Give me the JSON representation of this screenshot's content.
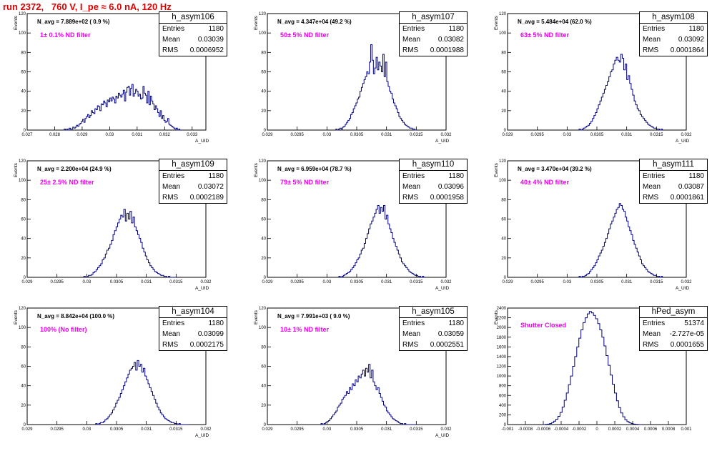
{
  "title": "run 2372,   760 V, I_pe ≈ 6.0 nA, 120 Hz",
  "stats_labels": {
    "entries": "Entries",
    "mean": "Mean",
    "rms": "RMS"
  },
  "colors": {
    "line": "#000080",
    "title": "#dd0000",
    "filter_text": "#ee00ee",
    "frame": "#000000"
  },
  "chart_data": [
    {
      "type": "histogram",
      "name": "h_asym106",
      "entries": "1180",
      "mean": "0.03039",
      "rms": "0.0006952",
      "n_avg_label": "N_avg = 7.889e+02 ( 0.9 %)",
      "filter_label": "1± 0.1% ND filter",
      "ylabel": "Events",
      "xlabel": "A_UID",
      "xlim": [
        0.027,
        0.0335
      ],
      "ylim": [
        0,
        120
      ],
      "xticks": [
        "0.027",
        "0.028",
        "0.029",
        "0.03",
        "0.031",
        "0.032",
        "0.033"
      ],
      "yticks": [
        "0",
        "20",
        "40",
        "60",
        "80",
        "100",
        "120"
      ],
      "x_tick_values": [
        0.027,
        0.028,
        0.029,
        0.03,
        0.031,
        0.032,
        0.033
      ],
      "y_tick_values": [
        0,
        20,
        40,
        60,
        80,
        100,
        120
      ],
      "bin_edges": [
        0.0283,
        0.0326
      ],
      "values": [
        0,
        1,
        0,
        1,
        0,
        2,
        1,
        1,
        3,
        2,
        3,
        5,
        4,
        6,
        7,
        9,
        11,
        8,
        12,
        14,
        16,
        13,
        15,
        20,
        18,
        17,
        22,
        21,
        25,
        24,
        20,
        27,
        26,
        30,
        28,
        24,
        31,
        29,
        33,
        30,
        34,
        32,
        28,
        35,
        33,
        38,
        36,
        34,
        37,
        41,
        30,
        39,
        44,
        45,
        36,
        43,
        47,
        35,
        38,
        42,
        40,
        35,
        37,
        32,
        33,
        45,
        38,
        36,
        28,
        40,
        26,
        35,
        30,
        27,
        21,
        25,
        22,
        18,
        14,
        20,
        12,
        15,
        10,
        8,
        9,
        12,
        6,
        5,
        4,
        3,
        2,
        1,
        2,
        0,
        1,
        0
      ]
    },
    {
      "type": "histogram",
      "name": "h_asym107",
      "entries": "1180",
      "mean": "0.03082",
      "rms": "0.0001988",
      "n_avg_label": "N_avg = 4.347e+04 (49.2 %)",
      "filter_label": "50± 5% ND filter",
      "ylabel": "Events",
      "xlabel": "A_UID",
      "xlim": [
        0.029,
        0.032
      ],
      "ylim": [
        0,
        120
      ],
      "xticks": [
        "0.029",
        "0.0295",
        "0.03",
        "0.0305",
        "0.031",
        "0.0315",
        "0.032"
      ],
      "yticks": [
        "0",
        "20",
        "40",
        "60",
        "80",
        "100",
        "120"
      ],
      "x_tick_values": [
        0.029,
        0.0295,
        0.03,
        0.0305,
        0.031,
        0.0315,
        0.032
      ],
      "y_tick_values": [
        0,
        20,
        40,
        60,
        80,
        100,
        120
      ],
      "bin_edges": [
        0.03015,
        0.0315
      ],
      "values": [
        1,
        0,
        1,
        2,
        1,
        3,
        4,
        6,
        8,
        10,
        12,
        16,
        18,
        22,
        25,
        28,
        32,
        34,
        40,
        44,
        48,
        52,
        55,
        60,
        58,
        70,
        88,
        72,
        58,
        64,
        75,
        62,
        70,
        66,
        60,
        78,
        55,
        70,
        50,
        45,
        40,
        38,
        32,
        28,
        25,
        22,
        18,
        14,
        12,
        10,
        8,
        6,
        5,
        4,
        3,
        2,
        2,
        1,
        1,
        0
      ]
    },
    {
      "type": "histogram",
      "name": "h_asym108",
      "entries": "1180",
      "mean": "0.03092",
      "rms": "0.0001864",
      "n_avg_label": "N_avg = 5.484e+04 (62.0 %)",
      "filter_label": "63± 5% ND filter",
      "ylabel": "Events",
      "xlabel": "A_UID",
      "xlim": [
        0.029,
        0.032
      ],
      "ylim": [
        0,
        120
      ],
      "xticks": [
        "0.029",
        "0.0295",
        "0.03",
        "0.0305",
        "0.031",
        "0.0315",
        "0.032"
      ],
      "yticks": [
        "0",
        "20",
        "40",
        "60",
        "80",
        "100",
        "120"
      ],
      "x_tick_values": [
        0.029,
        0.0295,
        0.03,
        0.0305,
        0.031,
        0.0315,
        0.032
      ],
      "y_tick_values": [
        0,
        20,
        40,
        60,
        80,
        100,
        120
      ],
      "bin_edges": [
        0.0302,
        0.0316
      ],
      "values": [
        1,
        0,
        1,
        2,
        3,
        4,
        5,
        7,
        9,
        12,
        15,
        18,
        22,
        26,
        30,
        34,
        38,
        42,
        46,
        50,
        55,
        60,
        62,
        68,
        72,
        75,
        72,
        70,
        78,
        74,
        62,
        68,
        52,
        56,
        48,
        42,
        36,
        30,
        26,
        22,
        20,
        16,
        14,
        12,
        10,
        8,
        6,
        5,
        4,
        3,
        2,
        2,
        1,
        1,
        0,
        1
      ]
    },
    {
      "type": "histogram",
      "name": "h_asym109",
      "entries": "1180",
      "mean": "0.03072",
      "rms": "0.0002189",
      "n_avg_label": "N_avg = 2.200e+04 (24.9 %)",
      "filter_label": "25± 2.5% ND filter",
      "ylabel": "Events",
      "xlabel": "A_UID",
      "xlim": [
        0.029,
        0.032
      ],
      "ylim": [
        0,
        120
      ],
      "xticks": [
        "0.029",
        "0.0295",
        "0.03",
        "0.0305",
        "0.031",
        "0.0315",
        "0.032"
      ],
      "yticks": [
        "0",
        "20",
        "40",
        "60",
        "80",
        "100",
        "120"
      ],
      "x_tick_values": [
        0.029,
        0.0295,
        0.03,
        0.0305,
        0.031,
        0.0315,
        0.032
      ],
      "y_tick_values": [
        0,
        20,
        40,
        60,
        80,
        100,
        120
      ],
      "bin_edges": [
        0.02995,
        0.0315
      ],
      "values": [
        1,
        0,
        1,
        2,
        2,
        3,
        5,
        6,
        8,
        10,
        12,
        14,
        18,
        20,
        24,
        28,
        30,
        34,
        38,
        44,
        48,
        52,
        56,
        60,
        64,
        62,
        70,
        58,
        66,
        60,
        68,
        56,
        62,
        52,
        48,
        44,
        40,
        36,
        30,
        26,
        22,
        18,
        15,
        12,
        10,
        8,
        6,
        5,
        4,
        3,
        2,
        2,
        1,
        1,
        0,
        1,
        0,
        0,
        0,
        0
      ]
    },
    {
      "type": "histogram",
      "name": "h_asym110",
      "entries": "1180",
      "mean": "0.03096",
      "rms": "0.0001958",
      "n_avg_label": "N_avg = 6.959e+04 (78.7 %)",
      "filter_label": "79± 5% ND filter",
      "ylabel": "Events",
      "xlabel": "A_UID",
      "xlim": [
        0.029,
        0.032
      ],
      "ylim": [
        0,
        120
      ],
      "xticks": [
        "0.029",
        "0.0295",
        "0.03",
        "0.0305",
        "0.031",
        "0.0315",
        "0.032"
      ],
      "yticks": [
        "0",
        "20",
        "40",
        "60",
        "80",
        "100",
        "120"
      ],
      "x_tick_values": [
        0.029,
        0.0295,
        0.03,
        0.0305,
        0.031,
        0.0315,
        0.032
      ],
      "y_tick_values": [
        0,
        20,
        40,
        60,
        80,
        100,
        120
      ],
      "bin_edges": [
        0.0302,
        0.03165
      ],
      "values": [
        1,
        0,
        1,
        2,
        3,
        4,
        5,
        6,
        8,
        10,
        12,
        15,
        18,
        20,
        24,
        28,
        30,
        35,
        40,
        45,
        50,
        55,
        58,
        62,
        66,
        70,
        74,
        66,
        72,
        68,
        74,
        60,
        64,
        55,
        50,
        46,
        40,
        36,
        32,
        28,
        24,
        20,
        16,
        14,
        12,
        10,
        8,
        6,
        5,
        4,
        3,
        2,
        2,
        1,
        1,
        0,
        1,
        0
      ]
    },
    {
      "type": "histogram",
      "name": "h_asym111",
      "entries": "1180",
      "mean": "0.03087",
      "rms": "0.0001861",
      "n_avg_label": "N_avg = 3.470e+04 (39.2 %)",
      "filter_label": "40± 4% ND filter",
      "ylabel": "Events",
      "xlabel": "A_UID",
      "xlim": [
        0.029,
        0.032
      ],
      "ylim": [
        0,
        120
      ],
      "xticks": [
        "0.029",
        "0.0295",
        "0.03",
        "0.0305",
        "0.031",
        "0.0315",
        "0.032"
      ],
      "yticks": [
        "0",
        "20",
        "40",
        "60",
        "80",
        "100",
        "120"
      ],
      "x_tick_values": [
        0.029,
        0.0295,
        0.03,
        0.0305,
        0.031,
        0.0315,
        0.032
      ],
      "y_tick_values": [
        0,
        20,
        40,
        60,
        80,
        100,
        120
      ],
      "bin_edges": [
        0.0302,
        0.0316
      ],
      "values": [
        1,
        0,
        1,
        1,
        2,
        3,
        4,
        6,
        8,
        10,
        12,
        15,
        18,
        22,
        25,
        28,
        32,
        36,
        40,
        45,
        50,
        55,
        58,
        62,
        66,
        70,
        72,
        76,
        74,
        70,
        68,
        62,
        58,
        52,
        48,
        44,
        38,
        34,
        30,
        26,
        22,
        18,
        14,
        12,
        10,
        8,
        6,
        5,
        4,
        3,
        2,
        2,
        1,
        1,
        0,
        1
      ]
    },
    {
      "type": "histogram",
      "name": "h_asym104",
      "entries": "1180",
      "mean": "0.03099",
      "rms": "0.0002175",
      "n_avg_label": "N_avg = 8.842e+04 (100.0 %)",
      "filter_label": "100% (No filter)",
      "ylabel": "Events",
      "xlabel": "A_UID",
      "xlim": [
        0.029,
        0.032
      ],
      "ylim": [
        0,
        120
      ],
      "xticks": [
        "0.029",
        "0.0295",
        "0.03",
        "0.0305",
        "0.031",
        "0.0315",
        "0.032"
      ],
      "yticks": [
        "0",
        "20",
        "40",
        "60",
        "80",
        "100",
        "120"
      ],
      "x_tick_values": [
        0.029,
        0.0295,
        0.03,
        0.0305,
        0.031,
        0.0315,
        0.032
      ],
      "y_tick_values": [
        0,
        20,
        40,
        60,
        80,
        100,
        120
      ],
      "bin_edges": [
        0.03015,
        0.0317
      ],
      "values": [
        1,
        0,
        1,
        2,
        2,
        3,
        5,
        6,
        8,
        10,
        12,
        15,
        18,
        22,
        25,
        28,
        32,
        36,
        40,
        44,
        48,
        52,
        56,
        58,
        60,
        64,
        56,
        66,
        60,
        62,
        54,
        58,
        50,
        46,
        42,
        38,
        34,
        30,
        26,
        22,
        18,
        15,
        12,
        10,
        8,
        6,
        5,
        4,
        3,
        2,
        2,
        1,
        1,
        0,
        1,
        0,
        0,
        0,
        0,
        0
      ]
    },
    {
      "type": "histogram",
      "name": "h_asym105",
      "entries": "1180",
      "mean": "0.03059",
      "rms": "0.0002551",
      "n_avg_label": "N_avg = 7.991e+03 ( 9.0 %)",
      "filter_label": "10± 1% ND filter",
      "ylabel": "Events",
      "xlabel": "A_UID",
      "xlim": [
        0.029,
        0.032
      ],
      "ylim": [
        0,
        120
      ],
      "xticks": [
        "0.029",
        "0.0295",
        "0.03",
        "0.0305",
        "0.031",
        "0.0315",
        "0.032"
      ],
      "yticks": [
        "0",
        "20",
        "40",
        "60",
        "80",
        "100",
        "120"
      ],
      "x_tick_values": [
        0.029,
        0.0295,
        0.03,
        0.0305,
        0.031,
        0.0315,
        0.032
      ],
      "y_tick_values": [
        0,
        20,
        40,
        60,
        80,
        100,
        120
      ],
      "bin_edges": [
        0.0299,
        0.0315
      ],
      "values": [
        1,
        0,
        1,
        2,
        3,
        4,
        6,
        8,
        10,
        12,
        14,
        18,
        20,
        22,
        26,
        28,
        30,
        34,
        32,
        38,
        36,
        42,
        40,
        46,
        44,
        50,
        48,
        52,
        56,
        50,
        58,
        54,
        62,
        48,
        56,
        44,
        40,
        36,
        38,
        32,
        28,
        24,
        20,
        18,
        14,
        12,
        10,
        8,
        6,
        5,
        4,
        3,
        2,
        1,
        1,
        0,
        1,
        0,
        0,
        0,
        0,
        0,
        0,
        0
      ]
    },
    {
      "type": "histogram",
      "name": "hPed_asym",
      "entries": "51374",
      "mean": "-2.727e-05",
      "rms": "0.0001655",
      "n_avg_label": "",
      "filter_label": "Shutter Closed",
      "ylabel": "Events",
      "xlabel": "",
      "xlim": [
        -0.001,
        0.001
      ],
      "ylim": [
        0,
        2400
      ],
      "xticks": [
        "-0.001",
        "-0.0008",
        "-0.0006",
        "-0.0004",
        "-0.0002",
        "0",
        "0.0002",
        "0.0004",
        "0.0006",
        "0.0008",
        "0.001"
      ],
      "yticks": [
        "0",
        "200",
        "400",
        "600",
        "800",
        "1000",
        "1200",
        "1400",
        "1600",
        "1800",
        "2000",
        "2200",
        "2400"
      ],
      "x_tick_values": [
        -0.001,
        -0.0008,
        -0.0006,
        -0.0004,
        -0.0002,
        0,
        0.0002,
        0.0004,
        0.0006,
        0.0008,
        0.001
      ],
      "y_tick_values": [
        0,
        200,
        400,
        600,
        800,
        1000,
        1200,
        1400,
        1600,
        1800,
        2000,
        2200,
        2400
      ],
      "bin_edges": [
        -0.0006,
        0.0005
      ],
      "values": [
        0,
        5,
        10,
        20,
        40,
        70,
        110,
        170,
        250,
        360,
        500,
        650,
        820,
        1000,
        1200,
        1400,
        1600,
        1780,
        1950,
        2100,
        2200,
        2280,
        2330,
        2300,
        2250,
        2180,
        2080,
        1950,
        1800,
        1620,
        1420,
        1220,
        1020,
        830,
        650,
        490,
        350,
        240,
        160,
        100,
        60,
        35,
        20,
        10,
        5,
        2,
        0
      ]
    }
  ]
}
